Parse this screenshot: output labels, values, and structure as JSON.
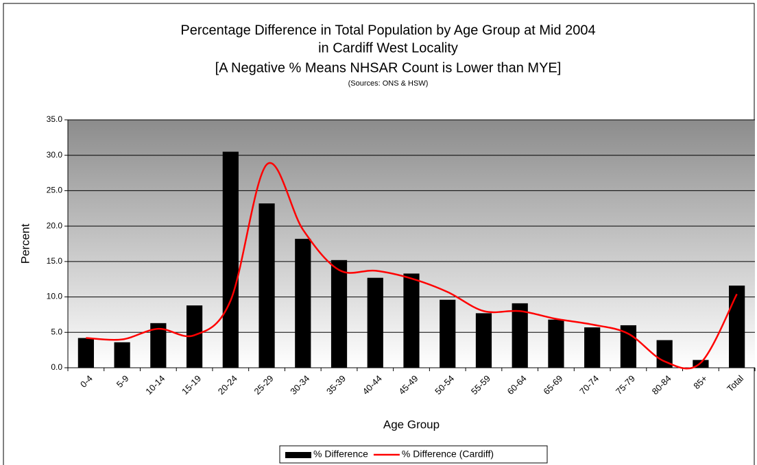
{
  "chart_data": {
    "type": "bar",
    "title": [
      "Percentage Difference in Total Population by Age Group at Mid 2004",
      "in Cardiff West Locality",
      "[A Negative % Means NHSAR Count is Lower than MYE]"
    ],
    "subtitle": "(Sources: ONS & HSW)",
    "x_label": "Age Group",
    "y_label": "Percent",
    "categories": [
      "0-4",
      "5-9",
      "10-14",
      "15-19",
      "20-24",
      "25-29",
      "30-34",
      "35-39",
      "40-44",
      "45-49",
      "50-54",
      "55-59",
      "60-64",
      "65-69",
      "70-74",
      "75-79",
      "80-84",
      "85+",
      "Total"
    ],
    "series": [
      {
        "name": "% Difference",
        "type": "bar",
        "color": "#000000",
        "values": [
          4.2,
          3.6,
          6.3,
          8.8,
          30.5,
          23.2,
          18.2,
          15.2,
          12.7,
          13.3,
          9.6,
          7.7,
          9.1,
          6.8,
          5.7,
          6.0,
          3.9,
          1.1,
          11.6
        ]
      },
      {
        "name": "% Difference (Cardiff)",
        "type": "line",
        "smooth": true,
        "color": "#ff0000",
        "values": [
          4.2,
          4.0,
          5.5,
          4.6,
          9.5,
          28.7,
          19.5,
          13.8,
          13.7,
          12.6,
          10.7,
          8.0,
          8.0,
          6.9,
          6.1,
          4.8,
          0.9,
          0.7,
          10.4
        ]
      }
    ],
    "ylim": [
      0,
      35
    ],
    "yticks": [
      {
        "value": 0,
        "label": "0.0"
      },
      {
        "value": 5,
        "label": "5.0"
      },
      {
        "value": 10,
        "label": "10.0"
      },
      {
        "value": 15,
        "label": "15.0"
      },
      {
        "value": 20,
        "label": "20.0"
      },
      {
        "value": 25,
        "label": "25.0"
      },
      {
        "value": 30,
        "label": "30.0"
      },
      {
        "value": 35,
        "label": "35.0"
      }
    ],
    "grid": true,
    "legend": "bottom"
  }
}
